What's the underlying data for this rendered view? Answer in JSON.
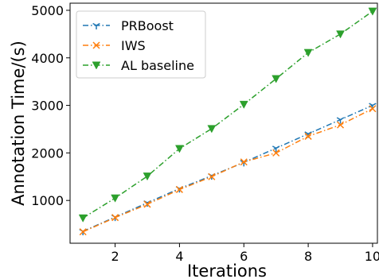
{
  "chart_data": {
    "type": "line",
    "xlabel": "Iterations",
    "ylabel": "Annotation Time/(s)",
    "xlim": [
      0.6,
      10.15
    ],
    "ylim": [
      100,
      5150
    ],
    "x_ticks": [
      2,
      4,
      6,
      8,
      10
    ],
    "y_ticks": [
      1000,
      2000,
      3000,
      4000,
      5000
    ],
    "grid": false,
    "legend_position": "top-left",
    "x": [
      1,
      2,
      3,
      4,
      5,
      6,
      7,
      8,
      9,
      10
    ],
    "series": [
      {
        "name": "PRBoost",
        "color": "#1f77b4",
        "marker": "tri_down",
        "linestyle": "dash-dot",
        "values": [
          350,
          650,
          950,
          1250,
          1520,
          1800,
          2100,
          2400,
          2700,
          3000
        ]
      },
      {
        "name": "IWS",
        "color": "#ff7f0e",
        "marker": "x",
        "linestyle": "dash-dot",
        "values": [
          340,
          640,
          920,
          1230,
          1500,
          1810,
          2000,
          2350,
          2590,
          2930
        ]
      },
      {
        "name": "AL baseline",
        "color": "#2ca02c",
        "marker": "triangle_down",
        "linestyle": "dash-dot",
        "values": [
          630,
          1050,
          1510,
          2090,
          2510,
          3020,
          3560,
          4110,
          4500,
          4980
        ]
      }
    ]
  }
}
